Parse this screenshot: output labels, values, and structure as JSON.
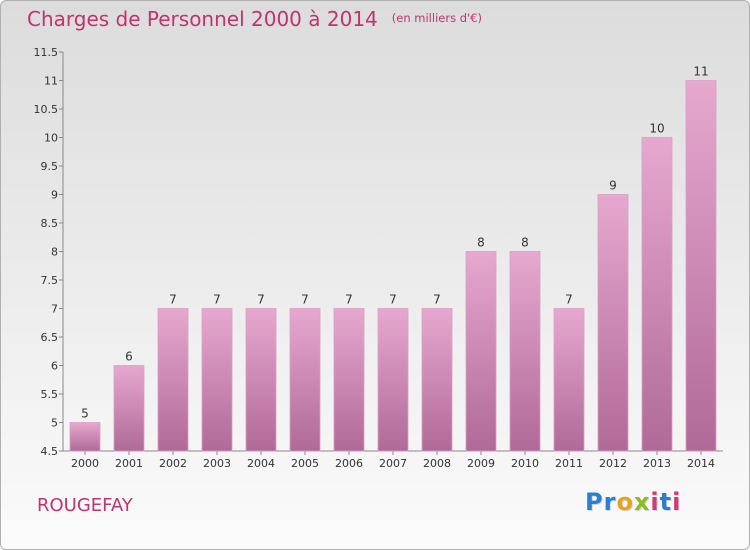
{
  "title": "Charges de Personnel 2000 à 2014",
  "subtitle": "(en milliers d'€)",
  "commune": "ROUGEFAY",
  "logo": {
    "letters": [
      "P",
      "r",
      "o",
      "x",
      "i",
      "t",
      "i"
    ],
    "colors": [
      "#2a7fd0",
      "#2a7fd0",
      "#e4a51d",
      "#8dbb23",
      "#d03a7a",
      "#2a7fd0",
      "#d03a7a"
    ]
  },
  "colors": {
    "title": "#c0336e",
    "bar_top": "#e6a8cf",
    "bar_bottom": "#b06a97"
  },
  "chart_data": {
    "type": "bar",
    "categories": [
      "2000",
      "2001",
      "2002",
      "2003",
      "2004",
      "2005",
      "2006",
      "2007",
      "2008",
      "2009",
      "2010",
      "2011",
      "2012",
      "2013",
      "2014"
    ],
    "values": [
      5,
      6,
      7,
      7,
      7,
      7,
      7,
      7,
      7,
      8,
      8,
      7,
      9,
      10,
      11
    ],
    "value_labels": [
      "5",
      "6",
      "7",
      "7",
      "7",
      "7",
      "7",
      "7",
      "7",
      "8",
      "8",
      "7",
      "9",
      "10",
      "11"
    ],
    "ylim": [
      4.5,
      11.5
    ],
    "yticks": [
      4.5,
      5,
      5.5,
      6,
      6.5,
      7,
      7.5,
      8,
      8.5,
      9,
      9.5,
      10,
      10.5,
      11,
      11.5
    ],
    "ytick_labels": [
      "4.5",
      "5",
      "5.5",
      "6",
      "6.5",
      "7",
      "7.5",
      "8",
      "8.5",
      "9",
      "9.5",
      "10",
      "10.5",
      "11",
      "11.5"
    ],
    "grid": false
  }
}
